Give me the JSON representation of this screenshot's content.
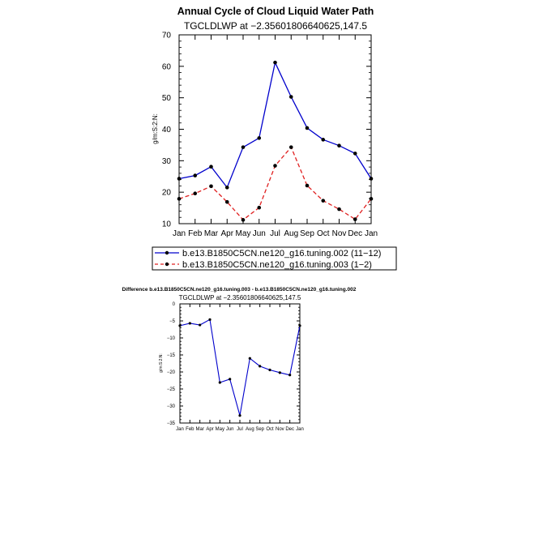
{
  "chart_data": [
    {
      "type": "line",
      "title": "Annual Cycle of Cloud Liquid Water Path",
      "subtitle": "TGCLDLWP at −2.35601806640625,147.5",
      "ylabel": "g/m:S:2:N:",
      "ylim": [
        10,
        70
      ],
      "yticks": [
        "10",
        "20",
        "30",
        "40",
        "50",
        "60",
        "70"
      ],
      "categories": [
        "Jan",
        "Feb",
        "Mar",
        "Apr",
        "May",
        "Jun",
        "Jul",
        "Aug",
        "Sep",
        "Oct",
        "Nov",
        "Dec",
        "Jan"
      ],
      "legend_position": "bottom",
      "series": [
        {
          "name": "b.e13.B1850C5CN.ne120_g16.tuning.002 (11−12)",
          "color": "#0000cc",
          "dash": "solid",
          "values": [
            24.3,
            25.3,
            28.1,
            21.5,
            34.3,
            37.2,
            61.2,
            50.3,
            40.4,
            36.7,
            34.8,
            32.3,
            24.3
          ]
        },
        {
          "name": "b.e13.B1850C5CN.ne120_g16.tuning.003 (1−2)",
          "color": "#e02020",
          "dash": "dashed",
          "values": [
            17.9,
            19.6,
            21.9,
            16.9,
            11.2,
            15.1,
            28.4,
            34.3,
            22.1,
            17.3,
            14.6,
            11.4,
            17.9
          ]
        }
      ]
    },
    {
      "type": "line",
      "title": "Difference b.e13.B1850C5CN.ne120_g16.tuning.003 - b.e13.B1850C5CN.ne120_g16.tuning.002",
      "subtitle": "TGCLDLWP at −2.35601806640625,147.5",
      "ylabel": "g/m:S:2:N:",
      "ylim": [
        -35,
        0
      ],
      "yticks": [
        "0",
        "−5",
        "−10",
        "−15",
        "−20",
        "−25",
        "−30",
        "−35"
      ],
      "categories": [
        "Jan",
        "Feb",
        "Mar",
        "Apr",
        "May",
        "Jun",
        "Jul",
        "Aug",
        "Sep",
        "Oct",
        "Nov",
        "Dec",
        "Jan"
      ],
      "series": [
        {
          "color": "#0000cc",
          "values": [
            -6.4,
            -5.7,
            -6.2,
            -4.6,
            -23.1,
            -22.1,
            -32.8,
            -16.0,
            -18.3,
            -19.4,
            -20.2,
            -20.9,
            -6.4
          ]
        }
      ]
    }
  ]
}
